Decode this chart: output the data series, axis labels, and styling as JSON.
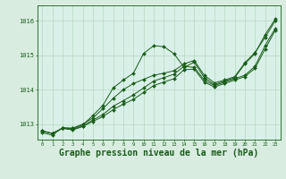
{
  "background_color": "#d8ece0",
  "plot_bg_color": "#d8f0e8",
  "line_color": "#1a5c1a",
  "marker_color": "#1a5c1a",
  "grid_color": "#b8d8c0",
  "xlabel": "Graphe pression niveau de la mer (hPa)",
  "xlabel_fontsize": 7,
  "ylabel_ticks": [
    1013,
    1014,
    1015,
    1016
  ],
  "xlim": [
    -0.5,
    23.5
  ],
  "ylim": [
    1012.55,
    1016.45
  ],
  "series": [
    [
      1012.75,
      1012.68,
      1012.9,
      1012.88,
      1012.98,
      1013.25,
      1013.55,
      1014.05,
      1014.28,
      1014.48,
      1015.05,
      1015.28,
      1015.25,
      1015.05,
      1014.65,
      1014.8,
      1014.35,
      1014.15,
      1014.25,
      1014.35,
      1014.75,
      1015.05,
      1015.6,
      1016.05
    ],
    [
      1012.8,
      1012.73,
      1012.88,
      1012.88,
      1013.0,
      1013.18,
      1013.45,
      1013.75,
      1014.0,
      1014.18,
      1014.3,
      1014.42,
      1014.48,
      1014.55,
      1014.75,
      1014.85,
      1014.42,
      1014.2,
      1014.28,
      1014.38,
      1014.78,
      1015.08,
      1015.52,
      1016.0
    ],
    [
      1012.8,
      1012.73,
      1012.88,
      1012.85,
      1012.95,
      1013.12,
      1013.28,
      1013.52,
      1013.68,
      1013.85,
      1014.05,
      1014.25,
      1014.35,
      1014.45,
      1014.68,
      1014.65,
      1014.28,
      1014.12,
      1014.22,
      1014.32,
      1014.42,
      1014.68,
      1015.28,
      1015.78
    ],
    [
      1012.8,
      1012.73,
      1012.88,
      1012.83,
      1012.93,
      1013.08,
      1013.22,
      1013.42,
      1013.58,
      1013.72,
      1013.92,
      1014.12,
      1014.22,
      1014.32,
      1014.58,
      1014.6,
      1014.22,
      1014.08,
      1014.18,
      1014.28,
      1014.38,
      1014.62,
      1015.18,
      1015.72
    ]
  ]
}
